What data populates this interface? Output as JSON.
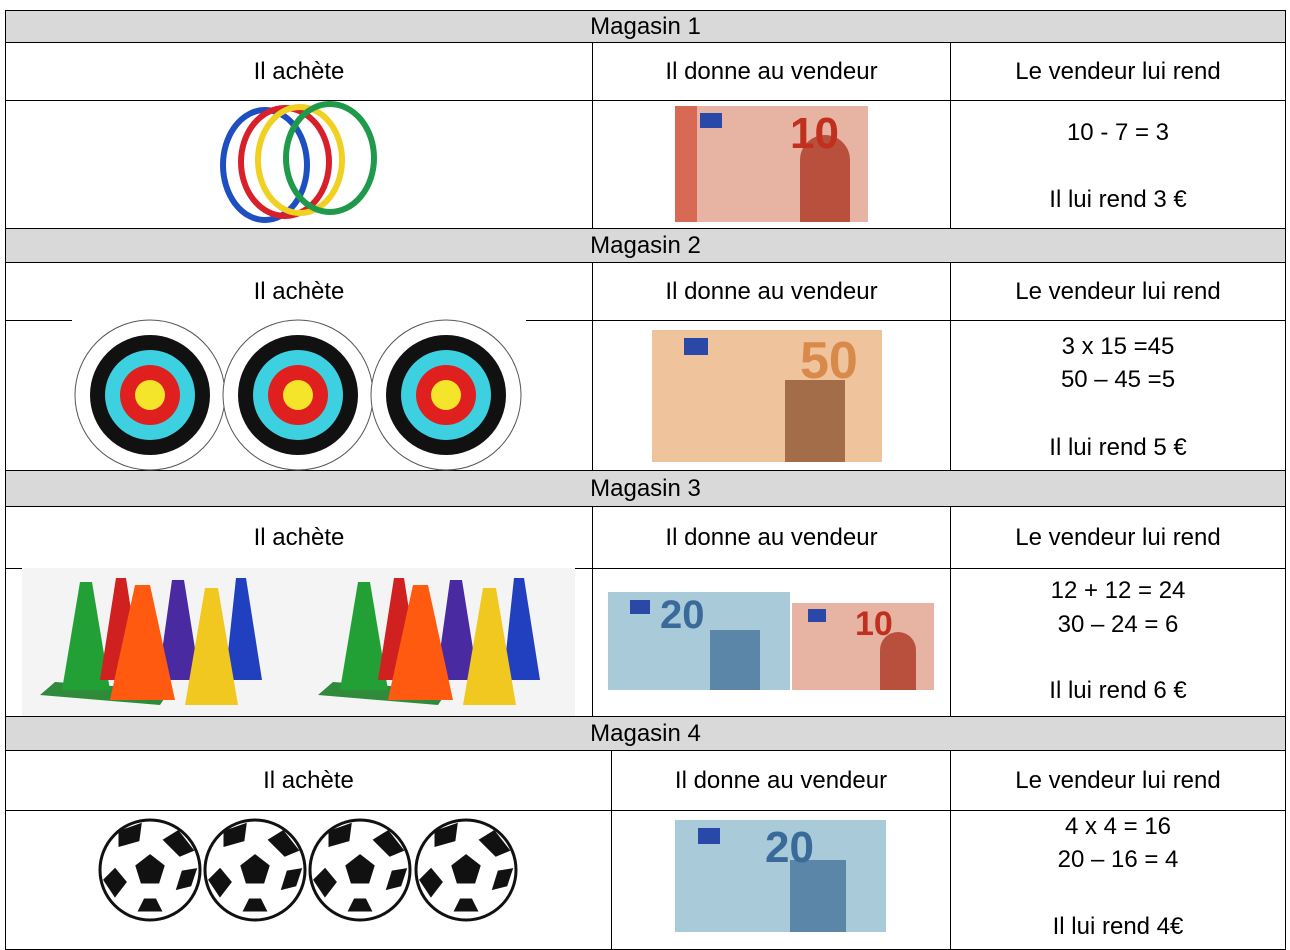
{
  "stores": [
    {
      "title": "Magasin 1",
      "columns": [
        "Il achète",
        "Il donne au vendeur",
        "Le vendeur lui rend"
      ],
      "notes": [
        "10"
      ],
      "calculation": [
        "10 - 7 = 3"
      ],
      "answer": "Il lui rend 3 €"
    },
    {
      "title": "Magasin 2",
      "columns": [
        "Il achète",
        "Il donne au vendeur",
        "Le vendeur lui rend"
      ],
      "notes": [
        "50"
      ],
      "calculation": [
        "3 x 15 =45",
        "50 – 45 =5"
      ],
      "answer": "Il lui rend 5 €"
    },
    {
      "title": "Magasin 3",
      "columns": [
        "Il achète",
        "Il donne au vendeur",
        "Le vendeur lui rend"
      ],
      "notes": [
        "20",
        "10"
      ],
      "calculation": [
        "12 + 12 = 24",
        "30 – 24 = 6"
      ],
      "answer": "Il lui rend 6 €"
    },
    {
      "title": "Magasin 4",
      "columns": [
        "Il achète",
        "Il donne au vendeur",
        "Le vendeur lui rend"
      ],
      "notes": [
        "20"
      ],
      "calculation": [
        "4 x 4 = 16",
        "20 – 16 = 4"
      ],
      "answer": "Il lui rend 4€"
    }
  ]
}
